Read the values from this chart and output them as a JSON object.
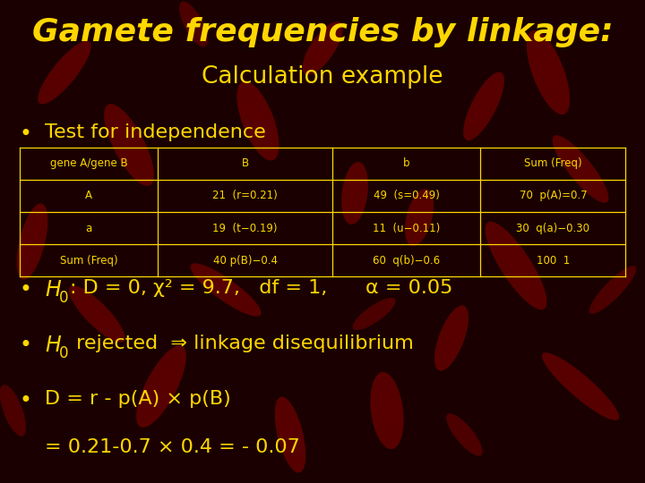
{
  "title_line1": "Gamete frequencies by linkage:",
  "title_line2": "Calculation example",
  "title_color": "#FFD700",
  "bg_color": "#1a0000",
  "text_color": "#FFD700",
  "bullet_color": "#FFD700",
  "table_text_color": "#FFD700",
  "table_border_color": "#FFD700",
  "table_header_row": [
    "gene A/gene B",
    "B",
    "b",
    "Sum (Freq)"
  ],
  "table_rows": [
    [
      "A",
      "21  (r=0.21)",
      "49  (s=0.49)",
      "70  p(A)=0.7"
    ],
    [
      "a",
      "19  (t−0.19)",
      "11  (u−0.11)",
      "30  q(a)−0.30"
    ],
    [
      "Sum (Freq)",
      "40 p(B)−0.4",
      "60  q(b)−0.6",
      "100  1"
    ]
  ],
  "bullet1": "Test for independence",
  "bullet2_rest": ": D = 0, χ² = 9.7,   df = 1,      α = 0.05",
  "bullet3_rest": " rejected  ⇒ linkage disequilibrium",
  "bullet4_line1": "D = r - p(A) × p(B)",
  "bullet4_line2": "= 0.21-0.7 × 0.4 = - 0.07",
  "chrom_positions": [
    [
      0.85,
      0.85,
      0.05,
      0.18,
      15
    ],
    [
      0.75,
      0.78,
      0.04,
      0.15,
      -20
    ],
    [
      0.9,
      0.65,
      0.04,
      0.16,
      30
    ],
    [
      0.65,
      0.55,
      0.04,
      0.12,
      -10
    ],
    [
      0.8,
      0.45,
      0.05,
      0.2,
      25
    ],
    [
      0.7,
      0.3,
      0.04,
      0.14,
      -15
    ],
    [
      0.9,
      0.2,
      0.04,
      0.18,
      40
    ],
    [
      0.6,
      0.15,
      0.05,
      0.16,
      5
    ],
    [
      0.1,
      0.85,
      0.04,
      0.15,
      -30
    ],
    [
      0.2,
      0.7,
      0.05,
      0.18,
      20
    ],
    [
      0.05,
      0.5,
      0.04,
      0.16,
      -10
    ],
    [
      0.15,
      0.35,
      0.04,
      0.14,
      35
    ],
    [
      0.5,
      0.9,
      0.04,
      0.12,
      -25
    ],
    [
      0.4,
      0.75,
      0.05,
      0.17,
      15
    ],
    [
      0.55,
      0.6,
      0.04,
      0.13,
      -5
    ],
    [
      0.35,
      0.4,
      0.04,
      0.15,
      45
    ],
    [
      0.25,
      0.2,
      0.05,
      0.18,
      -20
    ],
    [
      0.45,
      0.1,
      0.04,
      0.16,
      10
    ]
  ],
  "figsize": [
    7.2,
    5.4
  ],
  "dpi": 100
}
